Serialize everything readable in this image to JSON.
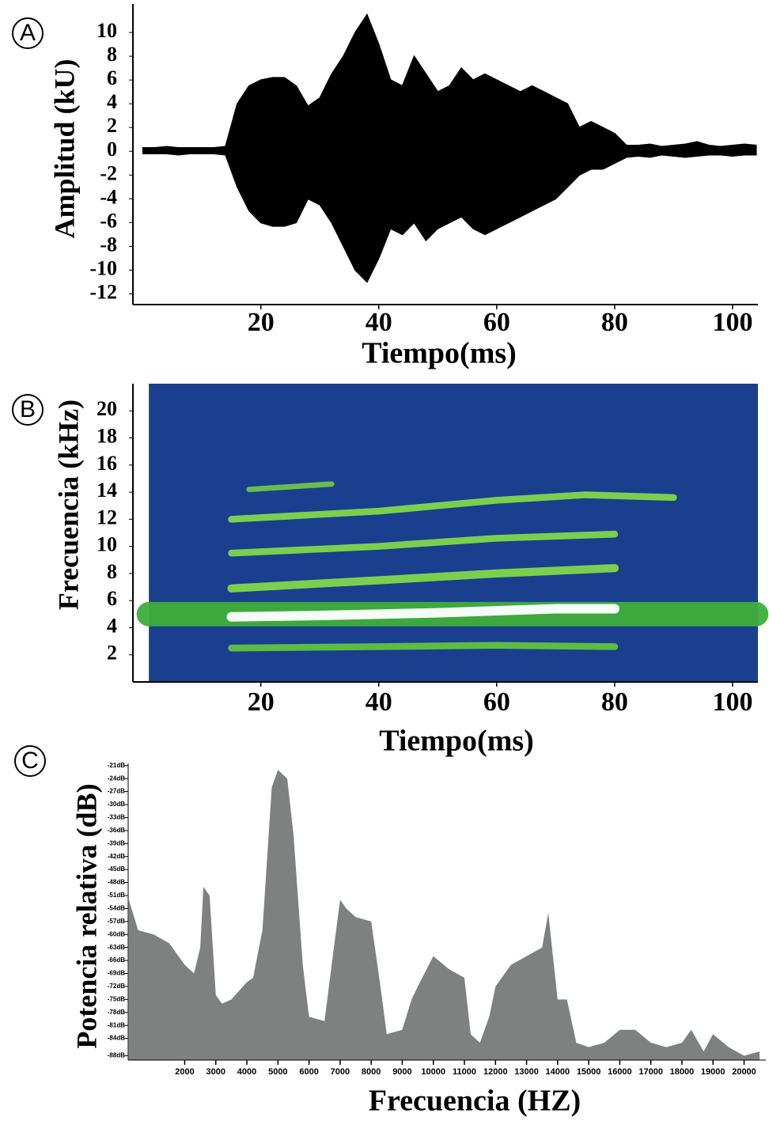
{
  "chart_data": [
    {
      "type": "envelope",
      "label": "A",
      "xlabel": "Tiempo(ms)",
      "ylabel": "Amplitud (kU)",
      "x": [
        0,
        2,
        4,
        6,
        8,
        10,
        12,
        14,
        16,
        18,
        20,
        22,
        24,
        26,
        28,
        30,
        32,
        34,
        36,
        38,
        40,
        42,
        44,
        46,
        48,
        50,
        52,
        54,
        56,
        58,
        60,
        62,
        64,
        66,
        68,
        70,
        72,
        74,
        76,
        78,
        80,
        82,
        84,
        86,
        88,
        90,
        92,
        94,
        96,
        98,
        100,
        102,
        104
      ],
      "series": [
        {
          "color": "#000000",
          "values": [
            0.3,
            0.3,
            0.4,
            0.3,
            0.3,
            0.3,
            0.3,
            0.4,
            4,
            5.5,
            6,
            6.2,
            6.2,
            5.5,
            3.8,
            4.5,
            6.5,
            8,
            10,
            11.5,
            9,
            6,
            5.5,
            8,
            6.5,
            5,
            5.5,
            7,
            6,
            6.5,
            6,
            5.5,
            5,
            5.5,
            5,
            4.5,
            4,
            2,
            2.5,
            2,
            1.5,
            0.5,
            0.5,
            0.6,
            0.4,
            0.5,
            0.6,
            0.8,
            0.5,
            0.4,
            0.5,
            0.6,
            0.5
          ]
        },
        {
          "color": "#000000",
          "values": [
            -0.2,
            -0.2,
            -0.2,
            -0.3,
            -0.2,
            -0.2,
            -0.2,
            -0.3,
            -3,
            -5,
            -6,
            -6.3,
            -6.3,
            -6,
            -4,
            -4.5,
            -6,
            -8,
            -10,
            -11,
            -9,
            -6.5,
            -7,
            -6,
            -7.5,
            -6.5,
            -6,
            -5.5,
            -6.5,
            -7,
            -6.5,
            -6,
            -5.5,
            -5,
            -4.5,
            -4,
            -3,
            -2,
            -1.5,
            -1.5,
            -1,
            -0.5,
            -0.4,
            -0.5,
            -0.3,
            -0.4,
            -0.5,
            -0.4,
            -0.3,
            -0.3,
            -0.4,
            -0.3,
            -0.3
          ]
        }
      ],
      "xlim": [
        -1.7,
        104.3
      ],
      "xticks": [
        20,
        40,
        60,
        80,
        100
      ],
      "ylim": [
        -12.9,
        12.4
      ],
      "yticks": [
        10,
        8,
        6,
        4,
        2,
        0,
        -2,
        -4,
        -6,
        -8,
        -10,
        -12
      ]
    },
    {
      "type": "spectrogram",
      "label": "B",
      "xlabel": "Tiempo(ms)",
      "ylabel": "Frecuencia (kHz)",
      "background": "#1a3f8f",
      "series": [
        {
          "color": "#3fae3a",
          "width": 1.8,
          "x": [
            1,
            104
          ],
          "values": [
            5,
            5
          ]
        },
        {
          "color": "#5fc43f",
          "width": 0.5,
          "x": [
            15,
            40,
            60,
            80
          ],
          "values": [
            2.5,
            2.6,
            2.7,
            2.6
          ]
        },
        {
          "color": "#7fd84a",
          "width": 0.6,
          "x": [
            15,
            40,
            60,
            80
          ],
          "values": [
            6.9,
            7.5,
            8.0,
            8.4
          ]
        },
        {
          "color": "#7fd84a",
          "width": 0.5,
          "x": [
            15,
            40,
            60,
            80
          ],
          "values": [
            9.5,
            10.0,
            10.6,
            10.9
          ]
        },
        {
          "color": "#7fd84a",
          "width": 0.5,
          "x": [
            15,
            40,
            60,
            75,
            90
          ],
          "values": [
            12.0,
            12.6,
            13.4,
            13.8,
            13.6
          ]
        },
        {
          "color": "#6fc44a",
          "width": 0.4,
          "x": [
            18,
            32
          ],
          "values": [
            14.2,
            14.6
          ]
        },
        {
          "color": "#ffffff",
          "width": 0.7,
          "x": [
            15,
            30,
            50,
            70,
            80
          ],
          "values": [
            4.8,
            4.9,
            5.1,
            5.4,
            5.4
          ]
        }
      ],
      "xlim": [
        -1.7,
        104.3
      ],
      "xticks": [
        20,
        40,
        60,
        80,
        100
      ],
      "ylim": [
        0,
        22
      ],
      "yticks": [
        20,
        18,
        16,
        14,
        12,
        10,
        8,
        6,
        4,
        2
      ]
    },
    {
      "type": "area",
      "label": "C",
      "xlabel": "Frecuencia (HZ)",
      "ylabel": "Potencia relativa (dB)",
      "color": "#7f8080",
      "x": [
        200,
        500,
        1000,
        1500,
        2000,
        2300,
        2500,
        2600,
        2800,
        3000,
        3200,
        3500,
        4000,
        4200,
        4500,
        4800,
        5000,
        5300,
        5500,
        5800,
        6000,
        6500,
        6800,
        7000,
        7200,
        7500,
        8000,
        8300,
        8500,
        9000,
        9300,
        9500,
        10000,
        10500,
        11000,
        11200,
        11500,
        11800,
        12000,
        12500,
        13000,
        13500,
        13700,
        14000,
        14300,
        14600,
        15000,
        15500,
        16000,
        16500,
        17000,
        17500,
        18000,
        18300,
        18700,
        19000,
        19500,
        20000,
        20500
      ],
      "values": [
        -52,
        -59,
        -60,
        -62,
        -67,
        -69,
        -63,
        -49,
        -51,
        -74,
        -76,
        -75,
        -71,
        -70,
        -59,
        -26,
        -22,
        -24,
        -37,
        -67,
        -79,
        -80,
        -63,
        -52,
        -54,
        -56,
        -57,
        -72,
        -83,
        -82,
        -75,
        -72,
        -65,
        -68,
        -70,
        -83,
        -85,
        -79,
        -72,
        -67,
        -65,
        -63,
        -55,
        -75,
        -75,
        -85,
        -86,
        -85,
        -82,
        -82,
        -85,
        -86,
        -85,
        -82,
        -87,
        -83,
        -86,
        -88,
        -87
      ],
      "xlim": [
        180,
        20700
      ],
      "xticks": [
        2000,
        3000,
        4000,
        5000,
        6000,
        7000,
        8000,
        9000,
        10000,
        11000,
        12000,
        13000,
        14000,
        15000,
        16000,
        17000,
        18000,
        19000,
        20000
      ],
      "ylim": [
        -89,
        -20.5
      ],
      "yticks": [
        {
          "value": -21,
          "label": "-21dB"
        },
        {
          "value": -24,
          "label": "-24dB"
        },
        {
          "value": -27,
          "label": "-27dB"
        },
        {
          "value": -30,
          "label": "-30dB"
        },
        {
          "value": -33,
          "label": "-33dB"
        },
        {
          "value": -36,
          "label": "-36dB"
        },
        {
          "value": -39,
          "label": "-39dB"
        },
        {
          "value": -42,
          "label": "-42dB"
        },
        {
          "value": -45,
          "label": "-45dB"
        },
        {
          "value": -48,
          "label": "-48dB"
        },
        {
          "value": -51,
          "label": "-51dB"
        },
        {
          "value": -54,
          "label": "-54dB"
        },
        {
          "value": -57,
          "label": "-57dB"
        },
        {
          "value": -60,
          "label": "-60dB"
        },
        {
          "value": -63,
          "label": "-63dB"
        },
        {
          "value": -66,
          "label": "-66dB"
        },
        {
          "value": -69,
          "label": "-69dB"
        },
        {
          "value": -72,
          "label": "-72dB"
        },
        {
          "value": -75,
          "label": "-75dB"
        },
        {
          "value": -78,
          "label": "-78dB"
        },
        {
          "value": -81,
          "label": "-81dB"
        },
        {
          "value": -84,
          "label": "-84dB"
        },
        {
          "value": -88,
          "label": "-88dB"
        }
      ]
    }
  ]
}
